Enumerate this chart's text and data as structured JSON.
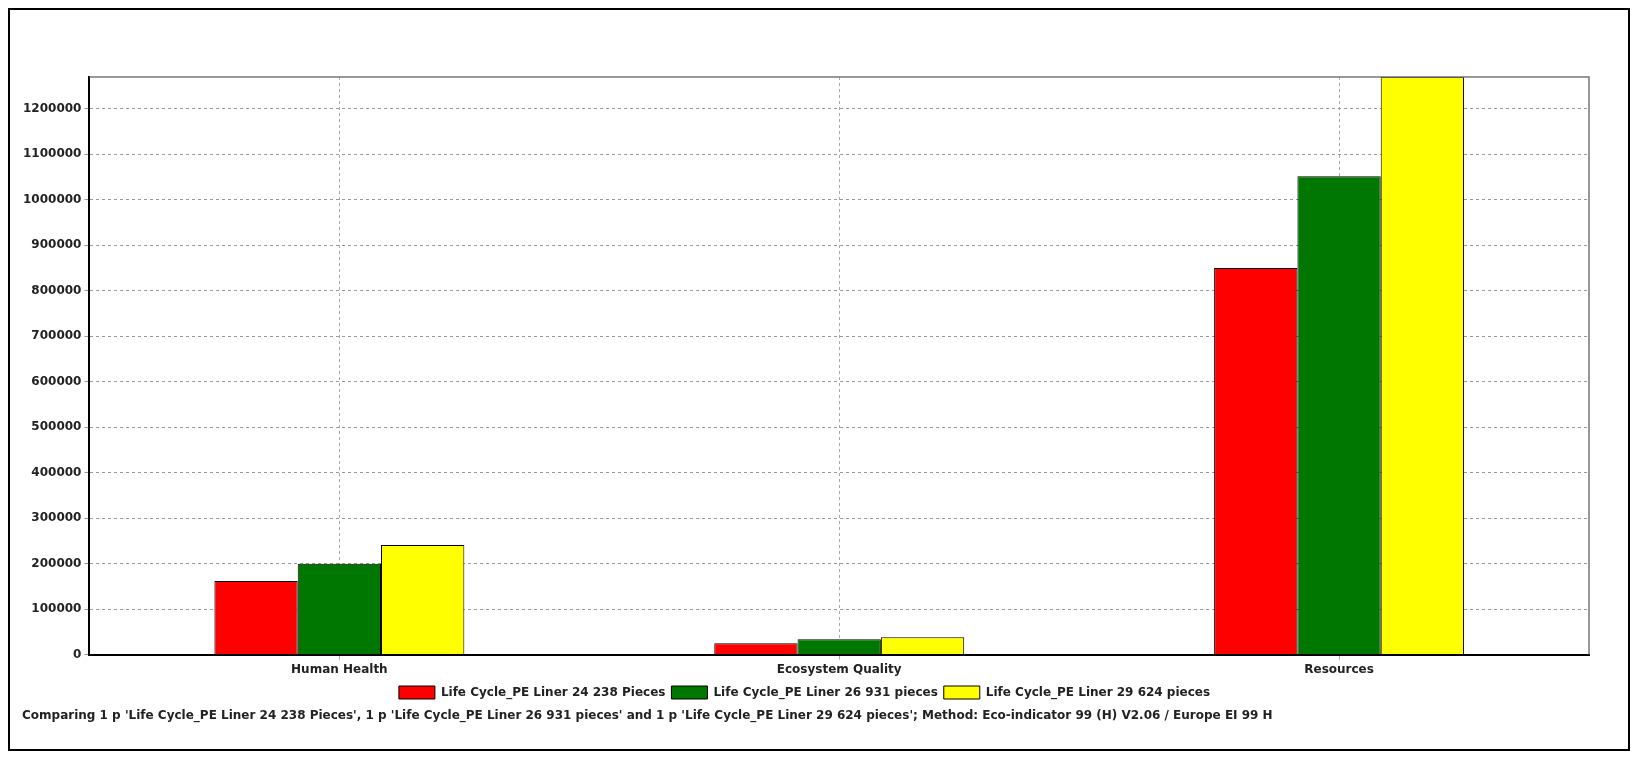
{
  "chart_data": {
    "type": "bar",
    "categories": [
      "Human Health",
      "Ecosystem Quality",
      "Resources"
    ],
    "series": [
      {
        "name": "Life Cycle_PE Liner 24 238 Pieces",
        "color": "#ff0000",
        "values": [
          162000,
          25000,
          850000
        ]
      },
      {
        "name": "Life Cycle_PE Liner 26 931 pieces",
        "color": "#007700",
        "values": [
          200000,
          34000,
          1052000
        ]
      },
      {
        "name": "Life Cycle_PE Liner 29 624 pieces",
        "color": "#ffff00",
        "values": [
          241000,
          38000,
          1270000
        ]
      }
    ],
    "ylim": [
      0,
      1270000
    ],
    "yticks": [
      0,
      100000,
      200000,
      300000,
      400000,
      500000,
      600000,
      700000,
      800000,
      900000,
      1000000,
      1100000,
      1200000
    ],
    "grid": true,
    "legend": "bottom",
    "annotations": [
      "Comparing 1 p 'Life Cycle_PE Liner 24 238 Pieces', 1 p 'Life Cycle_PE Liner 26 931 pieces' and 1 p 'Life Cycle_PE Liner 29 624 pieces';  Method: Eco-indicator 99 (H) V2.06 /  Europe EI 99 H"
    ]
  }
}
